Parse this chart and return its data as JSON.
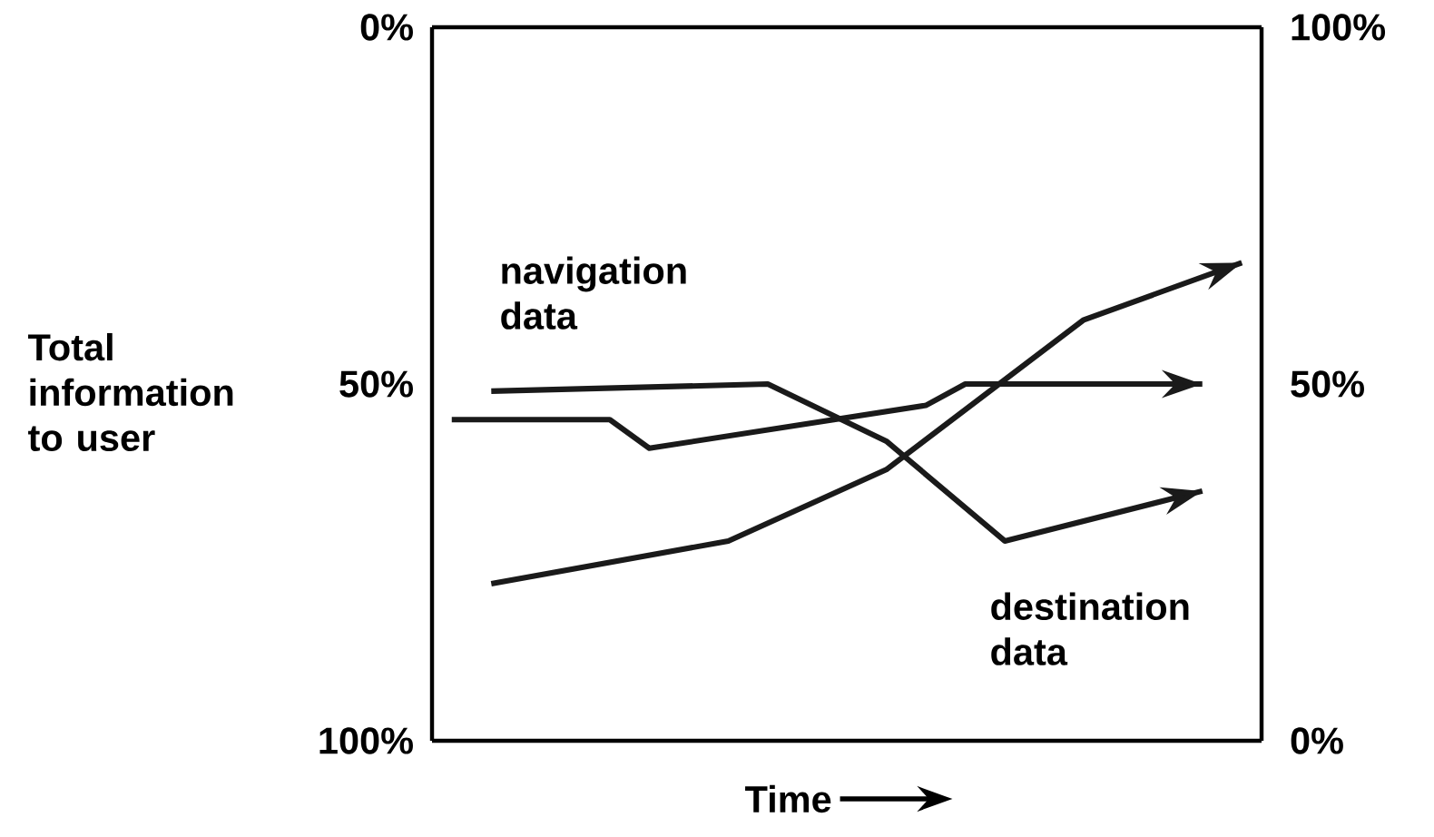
{
  "chart_data": {
    "type": "line",
    "xlabel": "Time",
    "ylabel": "Total information to user",
    "categories": [
      null,
      null,
      null,
      null,
      null,
      null,
      null,
      null,
      null,
      null,
      null,
      null,
      null,
      null,
      null,
      null,
      null,
      null,
      null,
      null,
      null
    ],
    "series": [
      {
        "color": "#1a1a1a",
        "values": [
          55,
          null,
          null,
          null,
          55,
          59,
          null,
          null,
          null,
          null,
          null,
          null,
          53,
          50,
          null,
          null,
          null,
          null,
          null,
          50,
          null
        ]
      },
      {
        "color": "#1a1a1a",
        "values": [
          null,
          51,
          null,
          null,
          null,
          null,
          null,
          null,
          50,
          null,
          null,
          58,
          null,
          null,
          72,
          null,
          null,
          null,
          null,
          65,
          null
        ]
      },
      {
        "color": "#1a1a1a",
        "values": [
          null,
          78,
          null,
          null,
          null,
          null,
          null,
          72,
          null,
          null,
          null,
          62,
          null,
          null,
          null,
          null,
          41,
          null,
          null,
          null,
          33
        ]
      }
    ],
    "ylim": [
      100,
      0
    ],
    "yticks": [
      {
        "value": 0,
        "label": "0%"
      },
      {
        "value": 50,
        "label": "50%"
      },
      {
        "value": 100,
        "label": "100%"
      }
    ],
    "y2lim": [
      0,
      100
    ],
    "y2ticks": [
      {
        "value": 0,
        "label": "0%"
      },
      {
        "value": 50,
        "label": "50%"
      },
      {
        "value": 100,
        "label": "100%"
      }
    ],
    "marker": "none",
    "line_style": "solid",
    "annotations": [
      "navigation data",
      "destination data"
    ]
  }
}
